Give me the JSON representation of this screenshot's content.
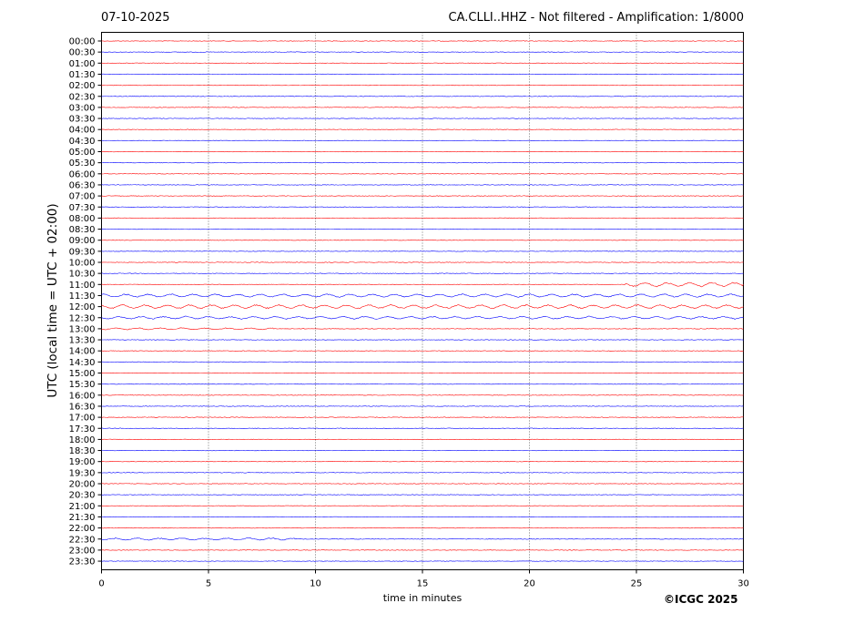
{
  "header": {
    "date": "07-10-2025",
    "title": "CA.CLLI..HHZ - Not filtered - Amplification: 1/8000"
  },
  "footer": {
    "copyright": "©ICGC 2025"
  },
  "chart_data": {
    "type": "line",
    "title": "CA.CLLI..HHZ - Not filtered - Amplification: 1/8000",
    "xlabel": "time in minutes",
    "ylabel": "UTC (local time = UTC + 02:00)",
    "xlim": [
      0,
      30
    ],
    "x_ticks": [
      "0",
      "5",
      "10",
      "15",
      "20",
      "25",
      "30"
    ],
    "x_gridlines": [
      5,
      10,
      15,
      20,
      25
    ],
    "grid": "dotted vertical",
    "series_colors": [
      "#ff0000",
      "#0000ff"
    ],
    "row_labels": [
      "00:00",
      "00:30",
      "01:00",
      "01:30",
      "02:00",
      "02:30",
      "03:00",
      "03:30",
      "04:00",
      "04:30",
      "05:00",
      "05:30",
      "06:00",
      "06:30",
      "07:00",
      "07:30",
      "08:00",
      "08:30",
      "09:00",
      "09:30",
      "10:00",
      "10:30",
      "11:00",
      "11:30",
      "12:00",
      "12:30",
      "13:00",
      "13:30",
      "14:00",
      "14:30",
      "15:00",
      "15:30",
      "16:00",
      "16:30",
      "17:00",
      "17:30",
      "18:00",
      "18:30",
      "19:00",
      "19:30",
      "20:00",
      "20:30",
      "21:00",
      "21:30",
      "22:00",
      "22:30",
      "23:00",
      "23:30"
    ],
    "events": [
      {
        "row": "11:00",
        "start_min": 24.5,
        "end_min": 30,
        "amplitude": 2.5
      },
      {
        "row": "11:30",
        "start_min": 0,
        "end_min": 30,
        "amplitude": 1.8
      },
      {
        "row": "12:00",
        "start_min": 0,
        "end_min": 30,
        "amplitude": 2.2
      },
      {
        "row": "12:30",
        "start_min": 0,
        "end_min": 30,
        "amplitude": 1.5
      },
      {
        "row": "13:00",
        "start_min": 0,
        "end_min": 8,
        "amplitude": 1.0
      },
      {
        "row": "22:30",
        "start_min": 0,
        "end_min": 9,
        "amplitude": 1.2
      }
    ]
  }
}
